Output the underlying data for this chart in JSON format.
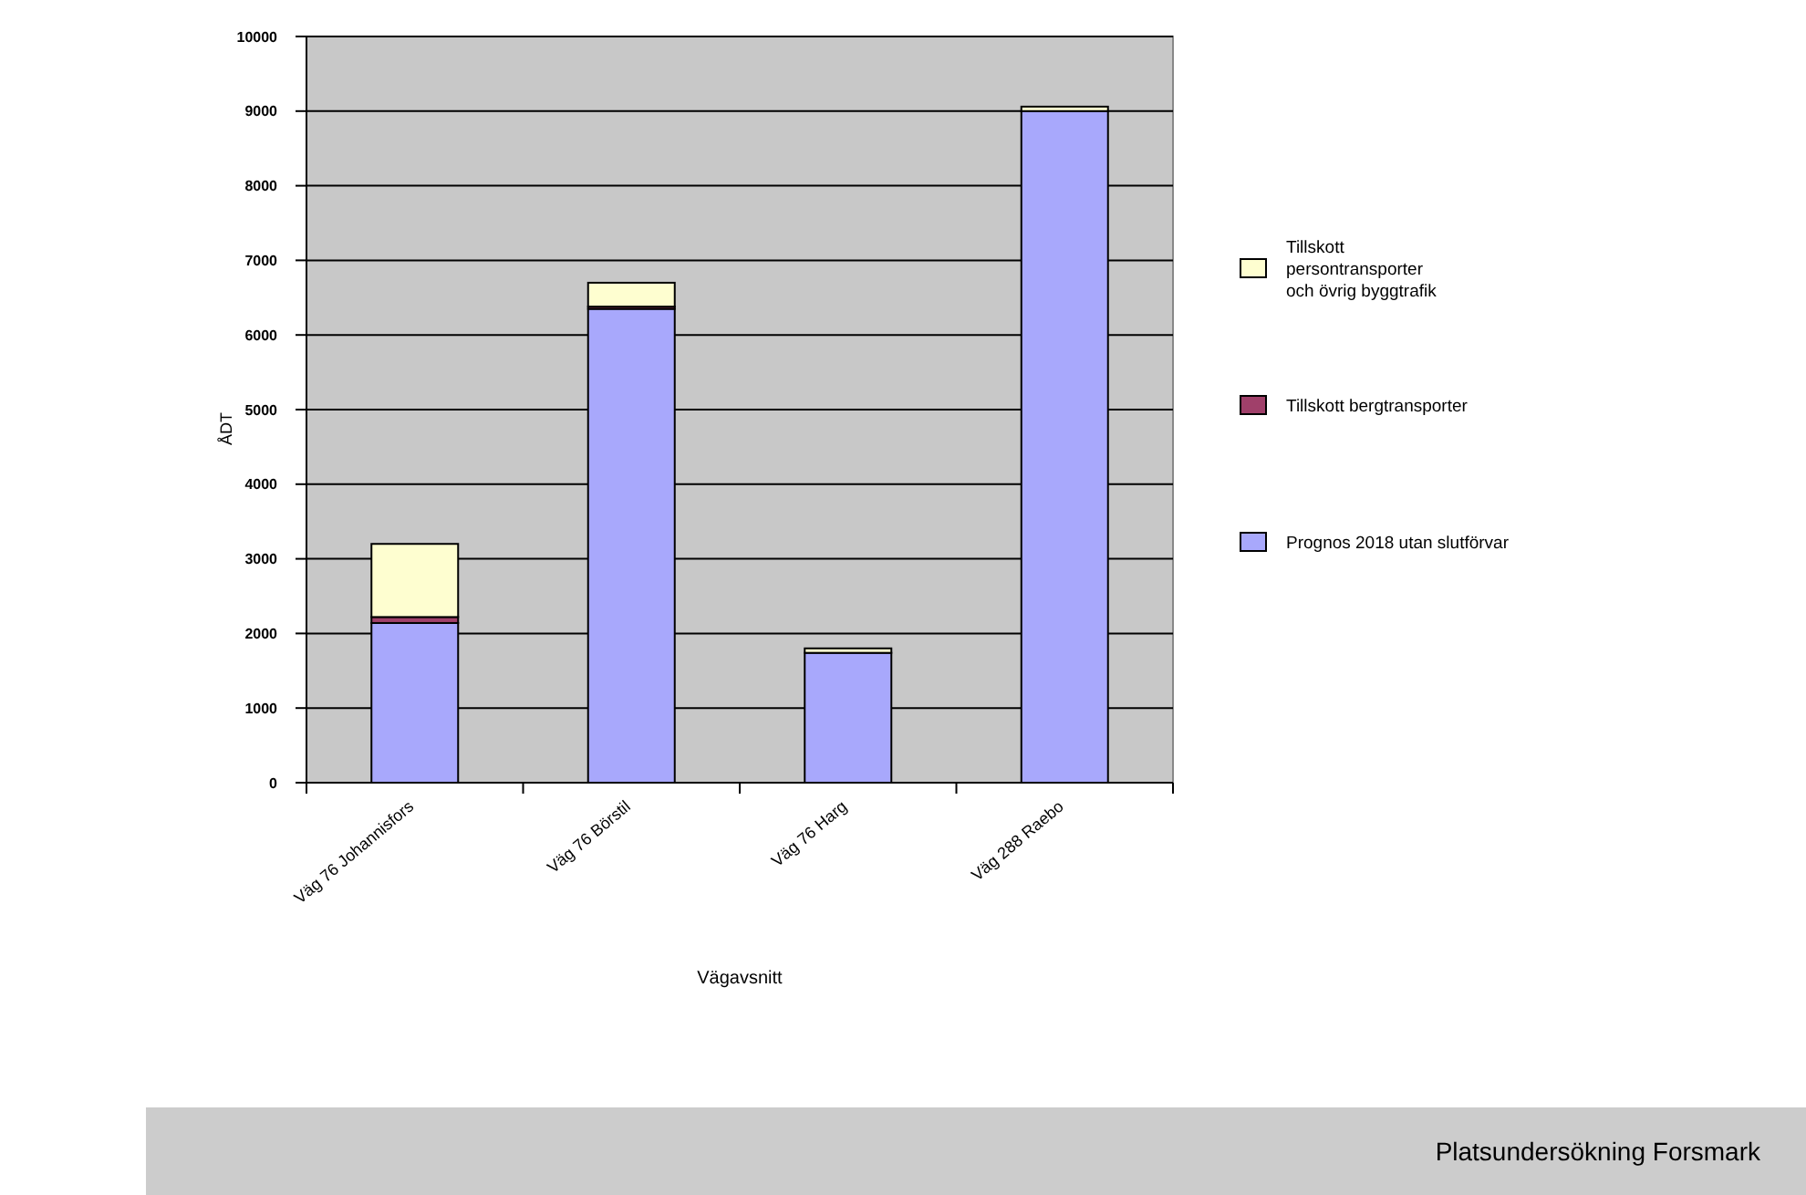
{
  "chart_data": {
    "type": "bar",
    "stacked": true,
    "xlabel": "Vägavsnitt",
    "ylabel": "ÅDT",
    "categories": [
      "Väg 76 Johannisfors",
      "Väg 76 Börstil",
      "Väg 76 Harg",
      "Väg 288 Raebo"
    ],
    "series": [
      {
        "name": "Prognos 2018 utan slutförvar",
        "color": "#a8a8fc",
        "values": [
          2140,
          6350,
          1740,
          9000
        ]
      },
      {
        "name": "Tillskott  bergtransporter",
        "color": "#a0406a",
        "values": [
          80,
          30,
          0,
          0
        ]
      },
      {
        "name": "Tillskott persontransporter och övrig byggtrafik",
        "color": "#fefed0",
        "values": [
          980,
          320,
          60,
          60
        ]
      }
    ],
    "ylim": [
      0,
      10000
    ],
    "yticks": [
      0,
      1000,
      2000,
      3000,
      4000,
      5000,
      6000,
      7000,
      8000,
      9000,
      10000
    ],
    "grid": "y",
    "legend": "right",
    "annotations": [
      "Platsundersökning Forsmark"
    ]
  }
}
